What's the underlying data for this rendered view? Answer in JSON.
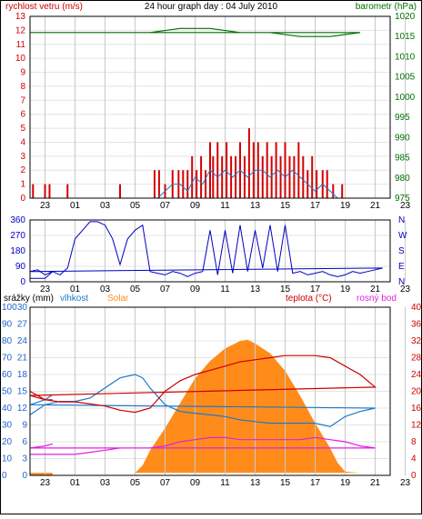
{
  "window": {
    "title": "24 hour graph day : 04 July 2010"
  },
  "colors": {
    "wind": "#d40000",
    "baro": "#007000",
    "dir": "#0000c0",
    "humidity": "#1e78c8",
    "solar": "#ff8c1a",
    "temp": "#cc0000",
    "dew": "#e020e0",
    "grid": "#c8c8c8",
    "axis_blue": "#1e64c8",
    "axis_red": "#cc0000"
  },
  "icons": [
    "none"
  ],
  "chart_data": [
    {
      "id": "wind_baro",
      "type": "bar",
      "title": "24 hour graph day : 04 July 2010",
      "ylabel_left": "rychlost vetru (m/s)",
      "ylabel_right": "barometr (hPa)",
      "x_ticks": [
        "23",
        "01",
        "03",
        "05",
        "07",
        "09",
        "11",
        "13",
        "15",
        "17",
        "19",
        "21",
        "23"
      ],
      "ylim_left": [
        0,
        13
      ],
      "y_ticks_left": [
        0,
        1,
        2,
        3,
        4,
        5,
        6,
        7,
        8,
        9,
        10,
        11,
        12,
        13
      ],
      "ylim_right": [
        975,
        1020
      ],
      "y_ticks_right": [
        975,
        980,
        985,
        990,
        995,
        1000,
        1005,
        1010,
        1015,
        1020
      ],
      "grid": true,
      "series": [
        {
          "name": "gust",
          "values": [
            [
              22.2,
              1
            ],
            [
              23.3,
              1
            ],
            [
              0.5,
              1
            ],
            [
              4.0,
              1
            ],
            [
              6.3,
              2
            ],
            [
              6.6,
              2
            ],
            [
              7.0,
              1
            ],
            [
              7.5,
              2
            ],
            [
              7.9,
              2
            ],
            [
              8.2,
              2
            ],
            [
              8.5,
              2
            ],
            [
              8.8,
              3
            ],
            [
              9.1,
              2
            ],
            [
              9.4,
              3
            ],
            [
              9.7,
              2
            ],
            [
              10.0,
              4
            ],
            [
              10.2,
              3
            ],
            [
              10.5,
              4
            ],
            [
              10.8,
              3
            ],
            [
              11.1,
              4
            ],
            [
              11.4,
              3
            ],
            [
              11.7,
              3
            ],
            [
              12.0,
              4
            ],
            [
              12.3,
              3
            ],
            [
              12.6,
              5
            ],
            [
              12.9,
              4
            ],
            [
              13.2,
              4
            ],
            [
              13.5,
              3
            ],
            [
              13.8,
              4
            ],
            [
              14.1,
              3
            ],
            [
              14.4,
              4
            ],
            [
              14.7,
              3
            ],
            [
              15.0,
              4
            ],
            [
              15.3,
              3
            ],
            [
              15.6,
              3
            ],
            [
              15.9,
              4
            ],
            [
              16.2,
              3
            ],
            [
              16.5,
              2
            ],
            [
              16.8,
              3
            ],
            [
              17.1,
              2
            ],
            [
              17.5,
              2
            ],
            [
              17.8,
              2
            ],
            [
              18.2,
              1
            ],
            [
              18.8,
              1
            ],
            [
              23.0,
              1
            ]
          ]
        },
        {
          "name": "wind",
          "values": [
            [
              6.5,
              0
            ],
            [
              7.0,
              0.5
            ],
            [
              7.5,
              1
            ],
            [
              8.0,
              1
            ],
            [
              8.5,
              0.5
            ],
            [
              9.0,
              1.5
            ],
            [
              9.5,
              1
            ],
            [
              10.0,
              2
            ],
            [
              10.5,
              1.5
            ],
            [
              11.0,
              2
            ],
            [
              11.5,
              1.5
            ],
            [
              12.0,
              2
            ],
            [
              12.5,
              1.5
            ],
            [
              13.0,
              2
            ],
            [
              13.5,
              2
            ],
            [
              14.0,
              1.5
            ],
            [
              14.5,
              2
            ],
            [
              15.0,
              1.5
            ],
            [
              15.5,
              2
            ],
            [
              16.0,
              1.5
            ],
            [
              16.5,
              1
            ],
            [
              17.0,
              0.5
            ],
            [
              17.5,
              1
            ],
            [
              18.0,
              0.5
            ],
            [
              18.5,
              0
            ]
          ]
        },
        {
          "name": "pressure",
          "values": [
            [
              22.0,
              1016
            ],
            [
              0.0,
              1016
            ],
            [
              2.0,
              1016
            ],
            [
              4.0,
              1016
            ],
            [
              6.0,
              1016
            ],
            [
              8.0,
              1017
            ],
            [
              10.0,
              1017
            ],
            [
              12.0,
              1016
            ],
            [
              14.0,
              1016
            ],
            [
              16.0,
              1015
            ],
            [
              18.0,
              1015
            ],
            [
              20.0,
              1016
            ],
            [
              22.0,
              1016
            ],
            [
              23.9,
              1016
            ]
          ]
        }
      ]
    },
    {
      "id": "direction",
      "type": "line",
      "x_ticks": [
        "23",
        "01",
        "03",
        "05",
        "07",
        "09",
        "11",
        "13",
        "15",
        "17",
        "19",
        "21",
        "23"
      ],
      "ylim": [
        0,
        360
      ],
      "y_ticks": [
        0,
        90,
        180,
        270,
        360
      ],
      "y_ticks_right": [
        "N",
        "E",
        "S",
        "W",
        "N"
      ],
      "grid": true,
      "series": [
        {
          "name": "direction",
          "values": [
            [
              22.0,
              20
            ],
            [
              23.0,
              20
            ],
            [
              23.5,
              60
            ],
            [
              0.0,
              40
            ],
            [
              0.5,
              80
            ],
            [
              1.0,
              250
            ],
            [
              1.5,
              300
            ],
            [
              2.0,
              350
            ],
            [
              2.5,
              350
            ],
            [
              3.0,
              330
            ],
            [
              3.5,
              250
            ],
            [
              4.0,
              100
            ],
            [
              4.5,
              250
            ],
            [
              5.0,
              300
            ],
            [
              5.5,
              330
            ],
            [
              6.0,
              60
            ],
            [
              6.5,
              50
            ],
            [
              7.0,
              40
            ],
            [
              7.5,
              60
            ],
            [
              8.0,
              50
            ],
            [
              8.5,
              30
            ],
            [
              9.0,
              50
            ],
            [
              9.5,
              60
            ],
            [
              10.0,
              300
            ],
            [
              10.5,
              40
            ],
            [
              11.0,
              300
            ],
            [
              11.5,
              50
            ],
            [
              12.0,
              330
            ],
            [
              12.5,
              60
            ],
            [
              13.0,
              300
            ],
            [
              13.5,
              80
            ],
            [
              14.0,
              330
            ],
            [
              14.5,
              60
            ],
            [
              15.0,
              330
            ],
            [
              15.5,
              50
            ],
            [
              16.0,
              60
            ],
            [
              16.5,
              40
            ],
            [
              17.0,
              50
            ],
            [
              17.5,
              60
            ],
            [
              18.0,
              40
            ],
            [
              18.5,
              30
            ],
            [
              19.0,
              40
            ],
            [
              19.5,
              60
            ],
            [
              20.0,
              50
            ],
            [
              20.5,
              60
            ],
            [
              21.0,
              70
            ],
            [
              21.5,
              80
            ],
            [
              22.0,
              60
            ],
            [
              22.5,
              70
            ],
            [
              23.0,
              40
            ],
            [
              23.5,
              60
            ]
          ]
        }
      ]
    },
    {
      "id": "thp",
      "type": "line",
      "labels": {
        "rain": "srážky (mm)",
        "humidity": "vlhkost",
        "solar": "Solar",
        "temp": "teplota (°C)",
        "dew": "rosný bod"
      },
      "x_ticks": [
        "23",
        "01",
        "03",
        "05",
        "07",
        "09",
        "11",
        "13",
        "15",
        "17",
        "19",
        "21",
        "23"
      ],
      "ylim_left_humidity": [
        0,
        100
      ],
      "y_ticks_left_humidity": [
        0,
        10,
        20,
        30,
        40,
        50,
        60,
        70,
        80,
        90,
        100
      ],
      "ylim_left_rain": [
        0,
        30
      ],
      "y_ticks_left_rain": [
        0,
        3,
        6,
        9,
        12,
        15,
        18,
        21,
        24,
        27,
        30
      ],
      "ylim_right_temp": [
        0,
        40
      ],
      "y_ticks_right_temp": [
        0,
        4,
        8,
        12,
        16,
        20,
        24,
        28,
        32,
        36,
        40
      ],
      "grid": true,
      "series": [
        {
          "name": "solar",
          "values": [
            [
              22.0,
              2
            ],
            [
              0.0,
              2
            ],
            [
              2.0,
              2
            ],
            [
              4.0,
              2
            ],
            [
              5.0,
              2
            ],
            [
              5.5,
              8
            ],
            [
              6.0,
              20
            ],
            [
              7.0,
              38
            ],
            [
              8.0,
              58
            ],
            [
              9.0,
              78
            ],
            [
              10.0,
              92
            ],
            [
              11.0,
              102
            ],
            [
              12.0,
              108
            ],
            [
              12.5,
              109
            ],
            [
              13.0,
              106
            ],
            [
              14.0,
              98
            ],
            [
              15.0,
              84
            ],
            [
              16.0,
              64
            ],
            [
              17.0,
              42
            ],
            [
              18.0,
              22
            ],
            [
              18.5,
              10
            ],
            [
              19.0,
              3
            ],
            [
              20.0,
              2
            ],
            [
              22.0,
              2
            ],
            [
              23.5,
              2
            ]
          ]
        },
        {
          "name": "humidity",
          "values": [
            [
              22.0,
              36
            ],
            [
              23.0,
              42
            ],
            [
              0.0,
              44
            ],
            [
              1.0,
              44
            ],
            [
              2.0,
              46
            ],
            [
              3.0,
              52
            ],
            [
              4.0,
              58
            ],
            [
              5.0,
              60
            ],
            [
              5.5,
              58
            ],
            [
              6.0,
              52
            ],
            [
              7.0,
              42
            ],
            [
              8.0,
              38
            ],
            [
              9.0,
              37
            ],
            [
              10.0,
              36
            ],
            [
              11.0,
              35
            ],
            [
              12.0,
              33
            ],
            [
              13.0,
              32
            ],
            [
              14.0,
              31
            ],
            [
              15.0,
              31
            ],
            [
              16.0,
              31
            ],
            [
              17.0,
              31
            ],
            [
              17.5,
              30
            ],
            [
              18.0,
              29
            ],
            [
              19.0,
              35
            ],
            [
              20.0,
              38
            ],
            [
              21.0,
              40
            ],
            [
              22.0,
              42
            ],
            [
              23.0,
              45
            ],
            [
              23.5,
              48
            ]
          ]
        },
        {
          "name": "temperature",
          "values": [
            [
              22.0,
              20
            ],
            [
              23.0,
              18
            ],
            [
              0.0,
              17.5
            ],
            [
              1.0,
              17.5
            ],
            [
              2.0,
              17
            ],
            [
              3.0,
              16.5
            ],
            [
              4.0,
              15.5
            ],
            [
              5.0,
              15
            ],
            [
              6.0,
              16
            ],
            [
              7.0,
              20
            ],
            [
              8.0,
              22.5
            ],
            [
              9.0,
              24
            ],
            [
              10.0,
              25
            ],
            [
              11.0,
              26
            ],
            [
              12.0,
              27
            ],
            [
              13.0,
              27.5
            ],
            [
              14.0,
              28
            ],
            [
              15.0,
              28.5
            ],
            [
              16.0,
              28.5
            ],
            [
              17.0,
              28.5
            ],
            [
              18.0,
              28
            ],
            [
              19.0,
              26
            ],
            [
              20.0,
              24
            ],
            [
              21.0,
              21
            ],
            [
              22.0,
              19
            ],
            [
              23.0,
              18
            ],
            [
              23.5,
              18
            ]
          ]
        },
        {
          "name": "dewpoint",
          "values": [
            [
              22.0,
              5
            ],
            [
              23.0,
              5
            ],
            [
              0.0,
              5
            ],
            [
              1.0,
              5
            ],
            [
              2.0,
              5.5
            ],
            [
              3.0,
              6
            ],
            [
              4.0,
              6.5
            ],
            [
              5.0,
              6.5
            ],
            [
              6.0,
              6.5
            ],
            [
              7.0,
              7
            ],
            [
              8.0,
              8
            ],
            [
              9.0,
              8.5
            ],
            [
              10.0,
              9
            ],
            [
              11.0,
              9
            ],
            [
              12.0,
              8.5
            ],
            [
              13.0,
              8.5
            ],
            [
              14.0,
              8.5
            ],
            [
              15.0,
              8.5
            ],
            [
              16.0,
              8.5
            ],
            [
              17.0,
              9
            ],
            [
              18.0,
              8.5
            ],
            [
              19.0,
              8
            ],
            [
              20.0,
              7
            ],
            [
              21.0,
              6.5
            ],
            [
              22.0,
              6.5
            ],
            [
              23.0,
              7
            ],
            [
              23.5,
              7.5
            ]
          ]
        }
      ]
    }
  ]
}
